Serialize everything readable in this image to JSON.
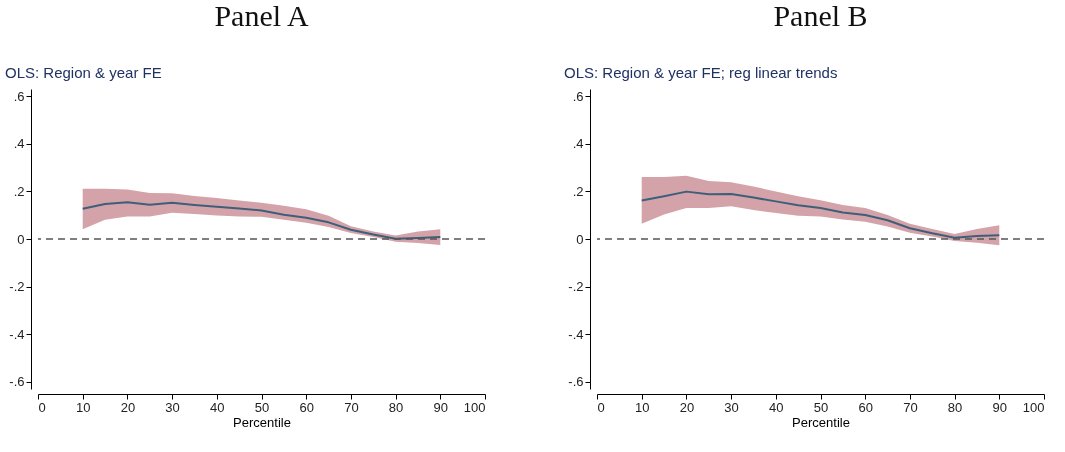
{
  "chart_data": [
    {
      "type": "line",
      "title": "Panel A",
      "subtitle": "OLS: Region & year FE",
      "xlabel": "Percentile",
      "x": [
        10,
        15,
        20,
        25,
        30,
        35,
        40,
        45,
        50,
        55,
        60,
        65,
        70,
        75,
        80,
        85,
        90
      ],
      "series": [
        {
          "color": "#3e5f7a",
          "values": [
            0.127,
            0.147,
            0.154,
            0.144,
            0.152,
            0.143,
            0.135,
            0.128,
            0.12,
            0.102,
            0.089,
            0.07,
            0.039,
            0.019,
            0.001,
            0.004,
            0.008
          ],
          "lower": [
            0.041,
            0.081,
            0.094,
            0.095,
            0.11,
            0.105,
            0.099,
            0.095,
            0.093,
            0.081,
            0.068,
            0.05,
            0.025,
            0.008,
            -0.012,
            -0.017,
            -0.025
          ],
          "upper": [
            0.211,
            0.211,
            0.208,
            0.193,
            0.192,
            0.181,
            0.172,
            0.162,
            0.152,
            0.14,
            0.125,
            0.098,
            0.054,
            0.032,
            0.015,
            0.032,
            0.041
          ]
        }
      ],
      "xlim": [
        0,
        100
      ],
      "xticks": [
        0,
        10,
        20,
        30,
        40,
        50,
        60,
        70,
        80,
        90,
        100
      ],
      "ylim": [
        -0.63,
        0.63
      ],
      "yticks": [
        {
          "value": 0.6,
          "label": ".6"
        },
        {
          "value": 0.4,
          "label": ".4"
        },
        {
          "value": 0.2,
          "label": ".2"
        },
        {
          "value": 0,
          "label": "0"
        },
        {
          "value": -0.2,
          "label": "-.2"
        },
        {
          "value": -0.4,
          "label": "-.4"
        },
        {
          "value": -0.6,
          "label": "-.6"
        }
      ],
      "ref_lines": [
        {
          "axis": "y",
          "value": 0,
          "color": "#555555",
          "line_style": "dashed"
        }
      ],
      "grid": false
    },
    {
      "type": "line",
      "title": "Panel B",
      "subtitle": "OLS: Region & year FE; reg linear trends",
      "xlabel": "Percentile",
      "x": [
        10,
        15,
        20,
        25,
        30,
        35,
        40,
        45,
        50,
        55,
        60,
        65,
        70,
        75,
        80,
        85,
        90
      ],
      "series": [
        {
          "color": "#3e5f7a",
          "values": [
            0.162,
            0.18,
            0.199,
            0.188,
            0.189,
            0.174,
            0.158,
            0.142,
            0.13,
            0.111,
            0.101,
            0.079,
            0.045,
            0.024,
            0.005,
            0.013,
            0.016
          ],
          "lower": [
            0.064,
            0.103,
            0.13,
            0.13,
            0.138,
            0.122,
            0.109,
            0.098,
            0.095,
            0.082,
            0.072,
            0.053,
            0.026,
            0.011,
            -0.008,
            -0.016,
            -0.026
          ],
          "upper": [
            0.26,
            0.26,
            0.266,
            0.244,
            0.238,
            0.22,
            0.2,
            0.18,
            0.163,
            0.143,
            0.13,
            0.101,
            0.064,
            0.042,
            0.021,
            0.042,
            0.058
          ]
        }
      ],
      "xlim": [
        0,
        100
      ],
      "xticks": [
        0,
        10,
        20,
        30,
        40,
        50,
        60,
        70,
        80,
        90,
        100
      ],
      "ylim": [
        -0.63,
        0.63
      ],
      "yticks": [
        {
          "value": 0.6,
          "label": ".6"
        },
        {
          "value": 0.4,
          "label": ".4"
        },
        {
          "value": 0.2,
          "label": ".2"
        },
        {
          "value": 0,
          "label": "0"
        },
        {
          "value": -0.2,
          "label": "-.2"
        },
        {
          "value": -0.4,
          "label": "-.4"
        },
        {
          "value": -0.6,
          "label": "-.6"
        }
      ],
      "ref_lines": [
        {
          "axis": "y",
          "value": 0,
          "color": "#555555",
          "line_style": "dashed"
        }
      ],
      "grid": false
    }
  ]
}
